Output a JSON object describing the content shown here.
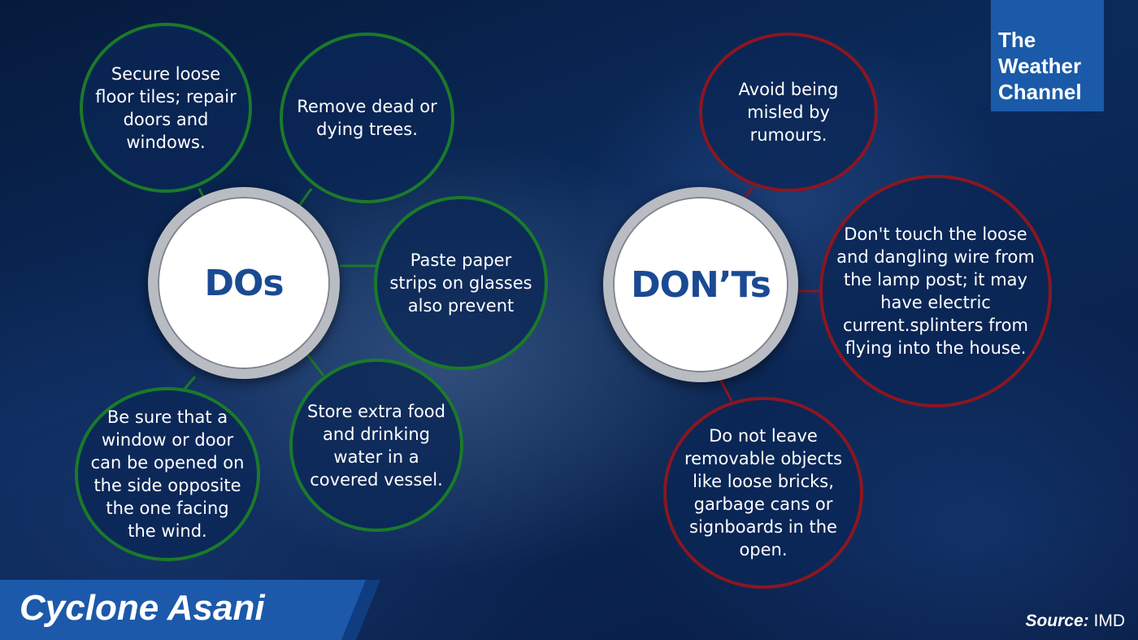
{
  "brand": {
    "logo_lines": [
      "The",
      "Weather",
      "Channel"
    ]
  },
  "title": "Cyclone Asani",
  "source": {
    "label": "Source:",
    "value": "IMD"
  },
  "dos": {
    "hub_label": "DOs",
    "items": [
      "Secure loose floor tiles; repair doors and windows.",
      "Remove dead or dying trees.",
      "Paste paper strips on glasses also prevent",
      "Store extra food and drinking water in a covered vessel.",
      "Be sure that a window or door can be opened on the side opposite the one facing the wind."
    ]
  },
  "donts": {
    "hub_label": "DON’Ts",
    "items": [
      "Avoid being misled by rumours.",
      "Don't touch the loose and dangling wire from the lamp post; it may have electric current.splinters from flying into the house.",
      "Do not leave removable objects like loose bricks, garbage cans or signboards in the open."
    ]
  },
  "colors": {
    "do_ring": "#1a7a2a",
    "dont_ring": "#8b1620",
    "hub_text": "#1a4a93",
    "banner": "#1c59aa"
  }
}
